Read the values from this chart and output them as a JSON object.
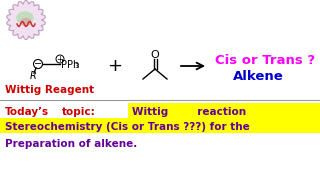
{
  "bg_color": "#ffffff",
  "title_text": "Cis or Trans ?",
  "title_color": "#ff00ff",
  "alkene_text": "Alkene",
  "alkene_color": "#0000cc",
  "wittig_label": "Wittig Reagent",
  "wittig_color": "#cc0000",
  "bottom_line1_red": "Today’s        topic:",
  "bottom_line1_blue": "Wittig        reaction",
  "bottom_line2": "Stereochemistry (Cis or Trans ???) for the",
  "bottom_line3": "Preparation of alkene.",
  "text_color_blue": "#660099",
  "text_color_red": "#cc0000",
  "highlight_color": "#ffff00",
  "fig_width": 3.2,
  "fig_height": 1.8,
  "dpi": 100
}
